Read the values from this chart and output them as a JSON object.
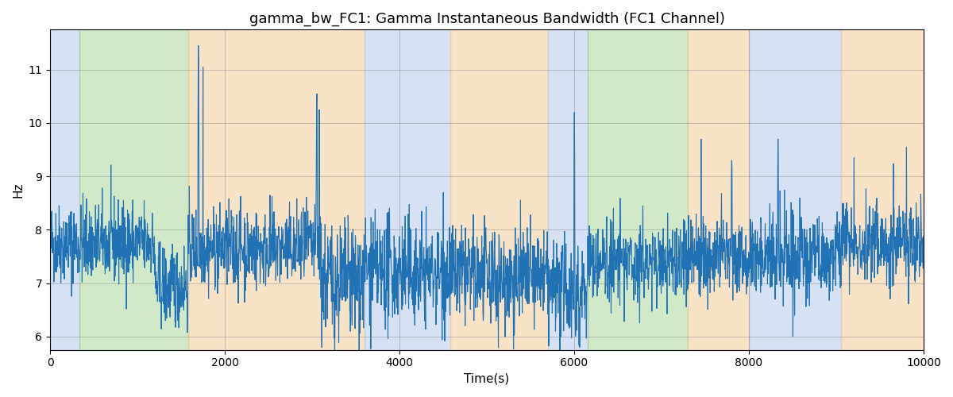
{
  "title": "gamma_bw_FC1: Gamma Instantaneous Bandwidth (FC1 Channel)",
  "xlabel": "Time(s)",
  "ylabel": "Hz",
  "xlim": [
    0,
    10000
  ],
  "ylim": [
    5.75,
    11.75
  ],
  "yticks": [
    6,
    7,
    8,
    9,
    10,
    11
  ],
  "line_color": "#2171b5",
  "line_width": 0.8,
  "background_color": "#ffffff",
  "bg_bands": [
    {
      "xmin": 0,
      "xmax": 340,
      "color": "#aec6e8",
      "alpha": 0.5
    },
    {
      "xmin": 340,
      "xmax": 1580,
      "color": "#90c878",
      "alpha": 0.4
    },
    {
      "xmin": 1580,
      "xmax": 3600,
      "color": "#f5c890",
      "alpha": 0.5
    },
    {
      "xmin": 3600,
      "xmax": 4580,
      "color": "#aec6e8",
      "alpha": 0.5
    },
    {
      "xmin": 4580,
      "xmax": 5700,
      "color": "#f5c890",
      "alpha": 0.5
    },
    {
      "xmin": 5700,
      "xmax": 6150,
      "color": "#aec6e8",
      "alpha": 0.5
    },
    {
      "xmin": 6150,
      "xmax": 7300,
      "color": "#90c878",
      "alpha": 0.4
    },
    {
      "xmin": 7300,
      "xmax": 8000,
      "color": "#f5c890",
      "alpha": 0.5
    },
    {
      "xmin": 8000,
      "xmax": 9050,
      "color": "#aec6e8",
      "alpha": 0.5
    },
    {
      "xmin": 9050,
      "xmax": 10000,
      "color": "#f5c890",
      "alpha": 0.5
    }
  ],
  "seed": 42,
  "n_points": 3000,
  "title_fontsize": 13,
  "base_mean": 7.75,
  "noise_std": 0.38
}
